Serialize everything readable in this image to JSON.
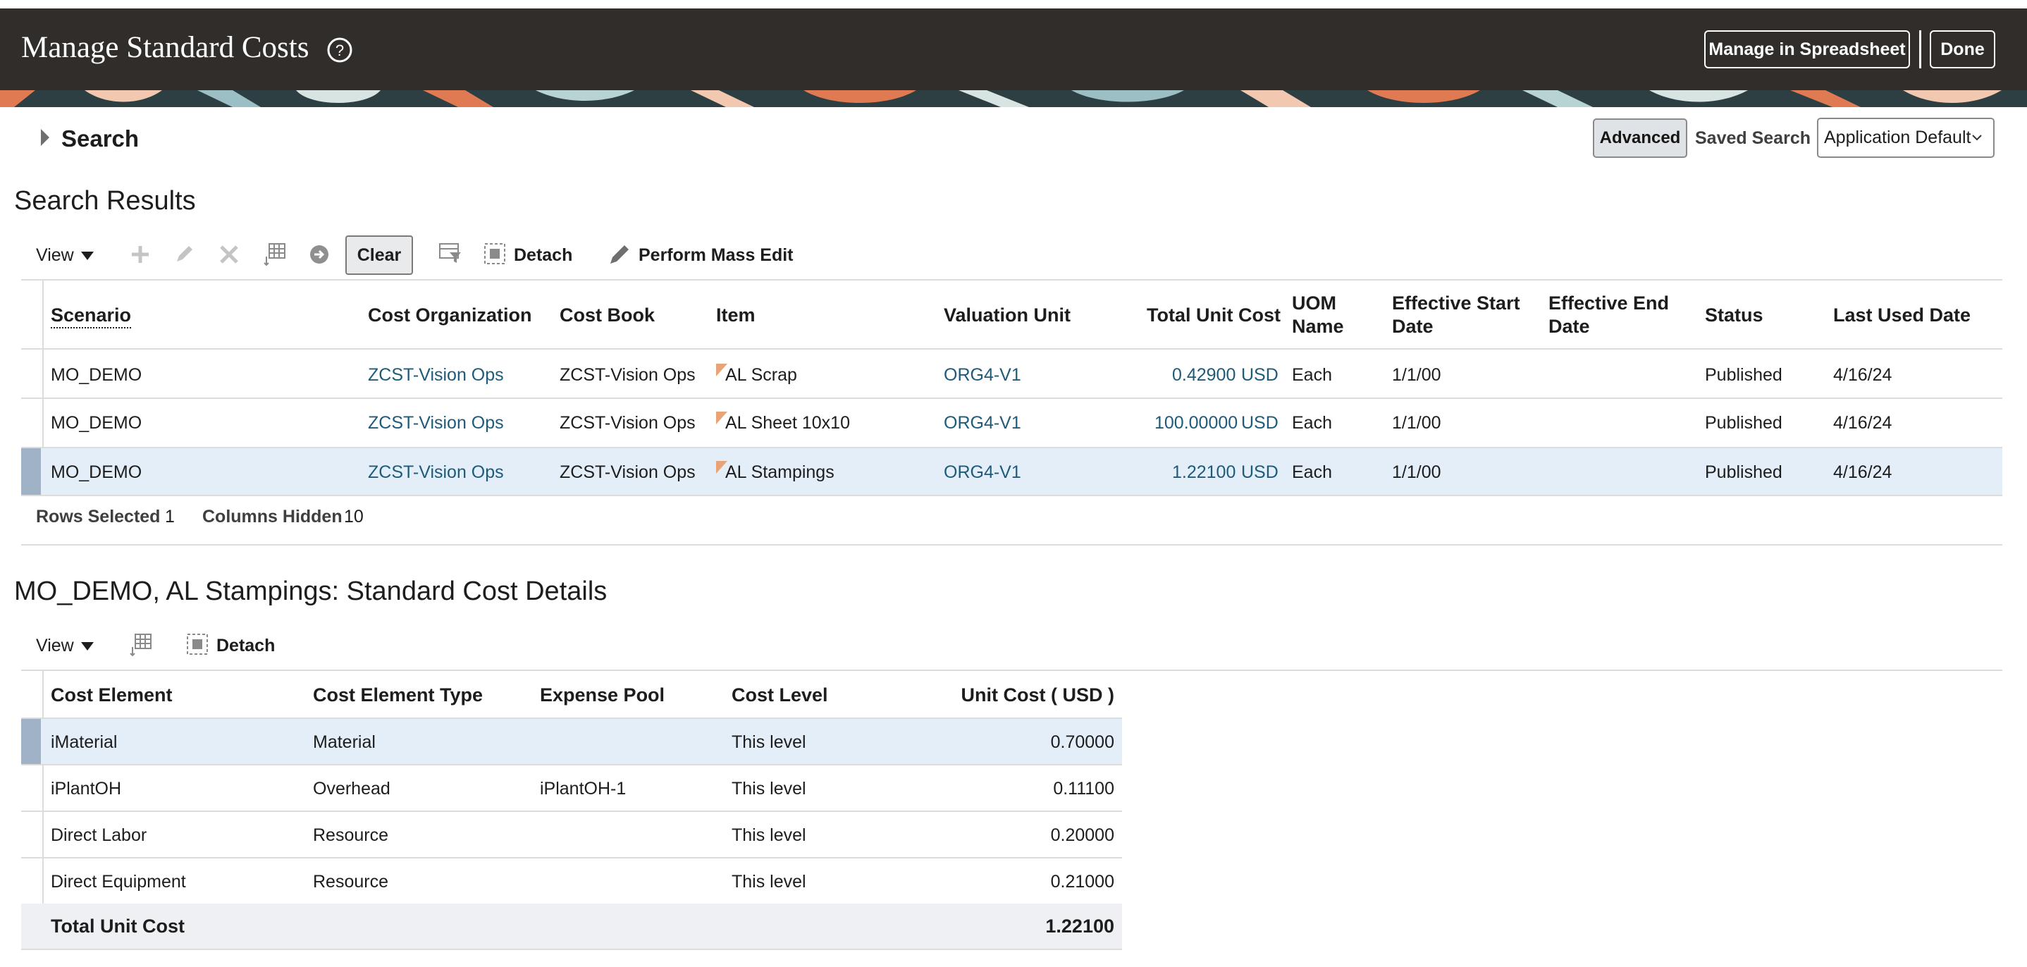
{
  "header": {
    "title": "Manage Standard Costs",
    "manage_in_spreadsheet": "Manage in Spreadsheet",
    "done": "Done"
  },
  "search": {
    "label": "Search",
    "advanced": "Advanced",
    "saved_search_label": "Saved Search",
    "saved_search_value": "Application Default"
  },
  "results": {
    "title": "Search Results",
    "toolbar": {
      "view": "View",
      "clear": "Clear",
      "detach": "Detach",
      "mass_edit": "Perform Mass Edit"
    },
    "columns": {
      "scenario": "Scenario",
      "cost_org": "Cost Organization",
      "cost_book": "Cost Book",
      "item": "Item",
      "valuation_unit": "Valuation Unit",
      "total_unit_cost": "Total Unit Cost",
      "uom_1": "UOM",
      "uom_2": "Name",
      "eff_start_1": "Effective Start",
      "eff_start_2": "Date",
      "eff_end_1": "Effective End",
      "eff_end_2": "Date",
      "status": "Status",
      "last_used": "Last Used Date"
    },
    "rows": [
      {
        "scenario": "MO_DEMO",
        "cost_org": "ZCST-Vision Ops",
        "cost_book": "ZCST-Vision Ops",
        "item": "AL Scrap",
        "valuation_unit": "ORG4-V1",
        "total_unit_cost": "0.42900",
        "currency": "USD",
        "uom": "Each",
        "eff_start": "1/1/00",
        "eff_end": "",
        "status": "Published",
        "last_used": "4/16/24"
      },
      {
        "scenario": "MO_DEMO",
        "cost_org": "ZCST-Vision Ops",
        "cost_book": "ZCST-Vision Ops",
        "item": "AL Sheet 10x10",
        "valuation_unit": "ORG4-V1",
        "total_unit_cost": "100.00000",
        "currency": "USD",
        "uom": "Each",
        "eff_start": "1/1/00",
        "eff_end": "",
        "status": "Published",
        "last_used": "4/16/24"
      },
      {
        "scenario": "MO_DEMO",
        "cost_org": "ZCST-Vision Ops",
        "cost_book": "ZCST-Vision Ops",
        "item": "AL Stampings",
        "valuation_unit": "ORG4-V1",
        "total_unit_cost": "1.22100",
        "currency": "USD",
        "uom": "Each",
        "eff_start": "1/1/00",
        "eff_end": "",
        "status": "Published",
        "last_used": "4/16/24"
      }
    ],
    "footer": {
      "rows_selected_label": "Rows Selected",
      "rows_selected_value": "1",
      "columns_hidden_label": "Columns Hidden",
      "columns_hidden_value": "10"
    }
  },
  "details": {
    "title": "MO_DEMO, AL Stampings: Standard Cost Details",
    "toolbar": {
      "view": "View",
      "detach": "Detach"
    },
    "columns": {
      "cost_element": "Cost Element",
      "cost_element_type": "Cost Element Type",
      "expense_pool": "Expense Pool",
      "cost_level": "Cost Level",
      "unit_cost": "Unit Cost ( USD )"
    },
    "rows": [
      {
        "cost_element": "iMaterial",
        "type": "Material",
        "pool": "",
        "level": "This level",
        "cost": "0.70000"
      },
      {
        "cost_element": "iPlantOH",
        "type": "Overhead",
        "pool": "iPlantOH-1",
        "level": "This level",
        "cost": "0.11100"
      },
      {
        "cost_element": "Direct Labor",
        "type": "Resource",
        "pool": "",
        "level": "This level",
        "cost": "0.20000"
      },
      {
        "cost_element": "Direct Equipment",
        "type": "Resource",
        "pool": "",
        "level": "This level",
        "cost": "0.21000"
      }
    ],
    "total_label": "Total Unit Cost",
    "total_value": "1.22100"
  },
  "colors": {
    "header_bg": "#312d2a",
    "link": "#1e5b7a",
    "selected_row": "#e4eef8"
  }
}
